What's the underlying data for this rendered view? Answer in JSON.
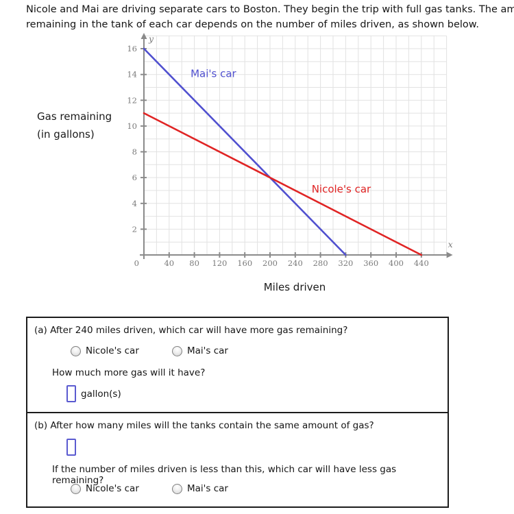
{
  "intro": {
    "line1": "Nicole and Mai are driving separate cars to Boston. They begin the trip with full gas tanks. The amo",
    "line2": "remaining in the tank of each car depends on the number of miles driven, as shown below."
  },
  "chart_data": {
    "type": "line",
    "xlabel": "Miles driven",
    "ylabel_line1": "Gas remaining",
    "ylabel_line2": "(in gallons)",
    "axis_letter_x": "x",
    "axis_letter_y": "y",
    "origin_label": "0",
    "x_ticks": [
      40,
      80,
      120,
      160,
      200,
      240,
      280,
      320,
      360,
      400,
      440
    ],
    "y_ticks": [
      2,
      4,
      6,
      8,
      10,
      12,
      14,
      16
    ],
    "xlim": [
      0,
      480
    ],
    "ylim": [
      0,
      17
    ],
    "grid": true,
    "x_grid_step": 20,
    "y_grid_step": 1,
    "series": [
      {
        "name": "Mai's car",
        "color": "#5050cf",
        "points": [
          [
            0,
            16
          ],
          [
            320,
            0
          ]
        ],
        "label_pos": [
          74,
          13.8
        ]
      },
      {
        "name": "Nicole's car",
        "color": "#e02424",
        "points": [
          [
            0,
            11
          ],
          [
            440,
            0
          ]
        ],
        "label_pos": [
          266,
          4.85
        ]
      }
    ],
    "grid_color": "#e2e2e2",
    "axis_color": "#8a8a8a",
    "tick_label_color": "#7a7a7a"
  },
  "questions": {
    "a": {
      "prompt": "(a) After 240 miles driven, which car will have more gas remaining?",
      "options": [
        "Nicole's car",
        "Mai's car"
      ],
      "followup": "How much more gas will it have?",
      "input_value": "",
      "input_suffix": "gallon(s)"
    },
    "b": {
      "prompt": "(b) After how many miles will the tanks contain the same amount of gas?",
      "input_value": "",
      "followup": "If the number of miles driven is less than this, which car will have less gas remaining?",
      "options": [
        "Nicole's car",
        "Mai's car"
      ]
    }
  },
  "colors": {
    "input_border": "#5a5ad0"
  }
}
